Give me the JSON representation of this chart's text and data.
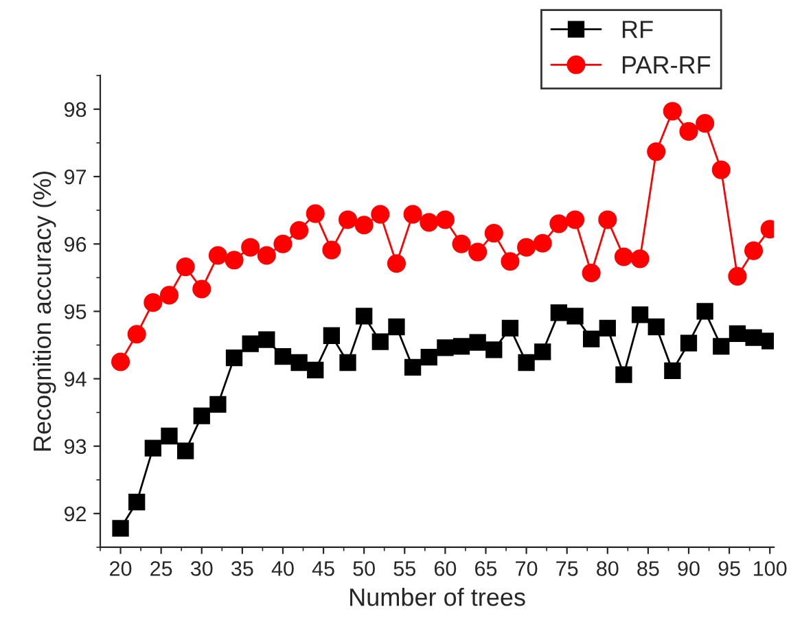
{
  "chart_data": {
    "type": "line",
    "xlabel": "Number of trees",
    "ylabel": "Recognition accuracy (%)",
    "x": [
      20,
      22,
      24,
      26,
      28,
      30,
      32,
      34,
      36,
      38,
      40,
      42,
      44,
      46,
      48,
      50,
      52,
      54,
      56,
      58,
      60,
      62,
      64,
      66,
      68,
      70,
      72,
      74,
      76,
      78,
      80,
      82,
      84,
      86,
      88,
      90,
      92,
      94,
      96,
      98,
      100
    ],
    "series": [
      {
        "name": "RF",
        "color": "#000000",
        "marker": "square",
        "values": [
          91.78,
          92.17,
          92.97,
          93.15,
          92.93,
          93.45,
          93.62,
          94.31,
          94.52,
          94.58,
          94.33,
          94.24,
          94.13,
          94.64,
          94.24,
          94.93,
          94.55,
          94.77,
          94.17,
          94.32,
          94.46,
          94.48,
          94.54,
          94.43,
          94.75,
          94.24,
          94.4,
          94.98,
          94.93,
          94.59,
          94.75,
          94.06,
          94.95,
          94.77,
          94.12,
          94.53,
          95.0,
          94.48,
          94.67,
          94.61,
          94.56
        ]
      },
      {
        "name": "PAR-RF",
        "color": "#ff0000",
        "marker": "circle",
        "values": [
          94.25,
          94.66,
          95.13,
          95.24,
          95.66,
          95.33,
          95.83,
          95.76,
          95.95,
          95.83,
          96.0,
          96.2,
          96.45,
          95.91,
          96.36,
          96.28,
          96.44,
          95.71,
          96.44,
          96.32,
          96.36,
          96.0,
          95.88,
          96.16,
          95.74,
          95.95,
          96.01,
          96.3,
          96.36,
          95.57,
          96.36,
          95.81,
          95.78,
          97.37,
          97.97,
          97.67,
          97.79,
          97.1,
          95.52,
          95.9,
          96.22
        ]
      }
    ],
    "xlim": [
      17.5,
      100.5
    ],
    "xticks": [
      20,
      25,
      30,
      35,
      40,
      45,
      50,
      55,
      60,
      65,
      70,
      75,
      80,
      85,
      90,
      95,
      100
    ],
    "ylim": [
      91.5,
      98.5
    ],
    "yticks": [
      92,
      93,
      94,
      95,
      96,
      97,
      98
    ],
    "legend": "top right",
    "grid": false,
    "line_style": "solid"
  }
}
